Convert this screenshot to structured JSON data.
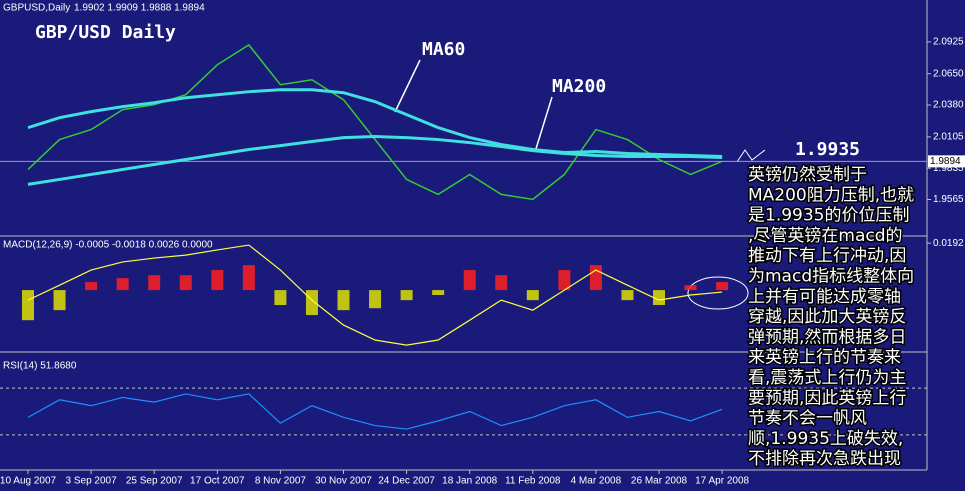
{
  "chart_data": [
    {
      "type": "line",
      "title": "GBPUSD,Daily",
      "subtitle": "1.9902 1.9909 1.9888 1.9894",
      "watermark": "GBP/USD Daily",
      "categories": [
        "10 Aug 2007",
        null,
        "3 Sep 2007",
        null,
        "25 Sep 2007",
        null,
        "17 Oct 2007",
        null,
        "8 Nov 2007",
        null,
        "30 Nov 2007",
        null,
        "24 Dec 2007",
        null,
        "18 Jan 2008",
        null,
        "11 Feb 2008",
        null,
        "4 Mar 2008",
        null,
        "26 Mar 2008",
        null,
        "17 Apr 2008"
      ],
      "series": [
        {
          "name": "GBPUSD",
          "color": "#32cd32",
          "width": 1.5,
          "values": [
            1.9824,
            2.0082,
            2.0168,
            2.034,
            2.0383,
            2.0469,
            2.0727,
            2.0899,
            2.0555,
            2.0598,
            2.0426,
            2.0082,
            1.9738,
            1.9609,
            1.9781,
            1.9609,
            1.9566,
            1.9781,
            2.0168,
            2.0082,
            1.991,
            1.9781,
            1.9894
          ]
        },
        {
          "name": "MA60",
          "color": "#40e0e0",
          "width": 3,
          "values": [
            2.0185,
            2.0271,
            2.0323,
            2.0366,
            2.04,
            2.0443,
            2.0469,
            2.0495,
            2.0512,
            2.0512,
            2.0486,
            2.0409,
            2.0297,
            2.0185,
            2.0099,
            2.0039,
            1.9996,
            1.997,
            1.9979,
            1.9962,
            1.9953,
            1.9944,
            1.9936
          ]
        },
        {
          "name": "MA200",
          "color": "#40e0e0",
          "width": 3,
          "values": [
            1.9695,
            1.9738,
            1.9781,
            1.9824,
            1.9867,
            1.991,
            1.9953,
            1.9996,
            2.003,
            2.0065,
            2.0099,
            2.0108,
            2.0099,
            2.0082,
            2.0056,
            2.0022,
            1.9987,
            1.9962,
            1.9944,
            1.9936,
            1.9936,
            1.9936,
            1.9927
          ]
        }
      ],
      "annotations": [
        "MA60",
        "MA200",
        "1.9935"
      ],
      "last_price": 1.9894,
      "ylim": [
        1.925,
        2.1286
      ],
      "yticks": [
        2.0925,
        {
          "value": 2.065,
          "label": "2.0650"
        },
        {
          "value": 2.038,
          "label": "2.0380"
        },
        2.0105,
        1.9835,
        1.9565
      ]
    },
    {
      "type": "macd",
      "title": "MACD(12,26,9) -0.0005 -0.0018 0.0026 0.0000",
      "histogram": {
        "up_color": "#ff2020",
        "down_color": "#e0e000",
        "values": [
          -0.0123,
          -0.0082,
          0.0033,
          0.0049,
          0.0061,
          0.0061,
          0.0082,
          0.0102,
          -0.0061,
          -0.0102,
          -0.0082,
          -0.0074,
          -0.0041,
          -0.002,
          0.0082,
          0.0061,
          -0.0041,
          0.0082,
          0.0102,
          -0.0041,
          -0.0061,
          0.002,
          0.0033
        ]
      },
      "signal": {
        "color": "#ffff40",
        "values": [
          -0.0041,
          0.002,
          0.0082,
          0.0115,
          0.0131,
          0.0143,
          0.0164,
          0.0184,
          0.0082,
          -0.0041,
          -0.0143,
          -0.0204,
          -0.0225,
          -0.0204,
          -0.0123,
          -0.0041,
          -0.0082,
          0,
          0.0082,
          0.002,
          -0.0041,
          -0.002,
          -0.0008
        ]
      },
      "ylim": [
        -0.0253,
        0.0217
      ],
      "yticks": [
        0.0192
      ]
    },
    {
      "type": "rsi",
      "title": "RSI(14) 51.8680",
      "color": "#1e90ff",
      "values": [
        45,
        60,
        55,
        62,
        58,
        65,
        60,
        65,
        40,
        55,
        45,
        38,
        35,
        42,
        50,
        38,
        45,
        55,
        60,
        45,
        50,
        42,
        51.868
      ],
      "levels": [
        30,
        70
      ],
      "ylim": [
        0,
        100
      ]
    }
  ],
  "overlay_text": {
    "lines": [
      "英镑仍然受制于",
      "MA200阻力压制,也就",
      "是1.9935的价位压制",
      ",尽管英镑在macd的",
      "推动下有上行冲动,因",
      "为macd指标线整体向",
      "上并有可能达成零轴",
      "穿越,因此加大英镑反",
      "弹预期,然而根据多日",
      "来英镑上行的节奏来",
      "看,震荡式上行仍为主",
      "要预期,因此英镑上行",
      "节奏不会一帆风",
      "顺,1.9935上破失效,",
      "不排除再次急跌出现"
    ]
  }
}
